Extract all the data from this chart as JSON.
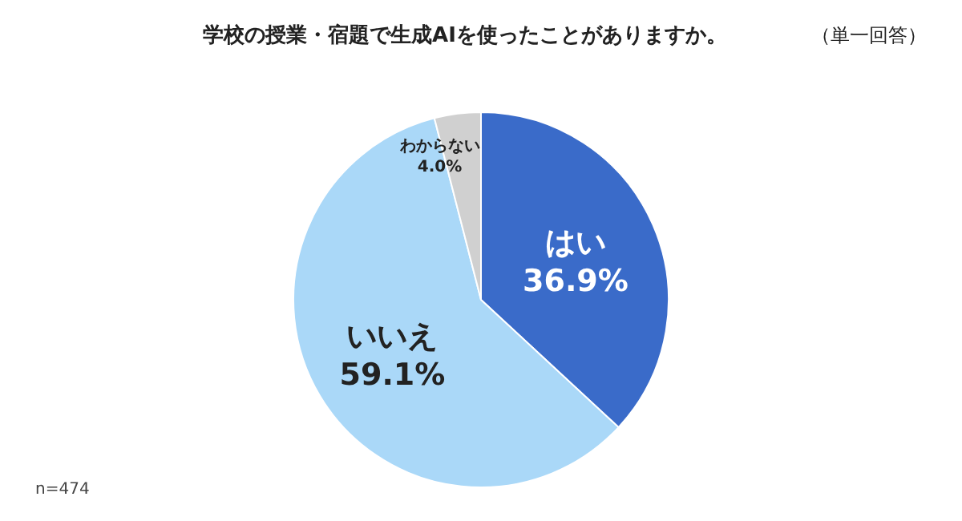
{
  "chart_data": {
    "type": "pie",
    "title": "学校の授業・宿題で生成AIを使ったことがありますか。",
    "subtitle": "（単一回答）",
    "categories": [
      "はい",
      "いいえ",
      "わからない"
    ],
    "values": [
      36.9,
      59.1,
      4.0
    ],
    "value_labels": [
      "36.9%",
      "59.1%",
      "4.0%"
    ],
    "colors": [
      "#3a6bc9",
      "#aad8f8",
      "#d0d0d0"
    ],
    "annotations": [
      "n=474"
    ]
  }
}
